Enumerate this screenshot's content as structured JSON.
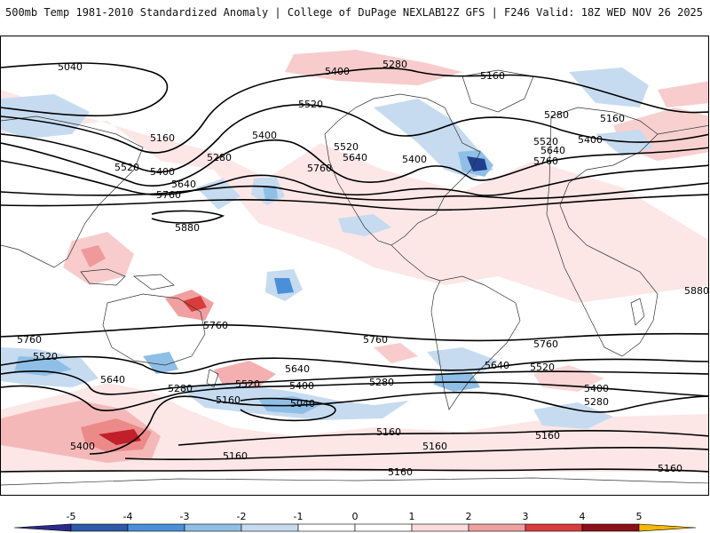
{
  "header": {
    "title_left": "500mb Temp 1981-2010 Standardized Anomaly | College of DuPage NEXLAB",
    "title_right": "12Z GFS | F246 Valid: 18Z WED NOV 26 2025"
  },
  "map": {
    "contour_labels": [
      "5040",
      "5400",
      "5280",
      "5160",
      "5520",
      "5160",
      "5280",
      "5160",
      "5280",
      "5520",
      "5400",
      "5640",
      "5400",
      "5520",
      "5640",
      "5760",
      "5400",
      "5520",
      "5400",
      "5760",
      "5640",
      "5760",
      "5880",
      "5880",
      "5760",
      "5760",
      "5760",
      "5760",
      "5520",
      "5640",
      "5640",
      "5520",
      "5640",
      "5520",
      "5400",
      "5280",
      "5400",
      "5280",
      "5160",
      "5040",
      "5280",
      "5160",
      "5160",
      "5400",
      "5160",
      "5160",
      "5160",
      "5160"
    ],
    "colors": {
      "cold_light": "#c6dbf0",
      "cold_mid": "#8fbfe6",
      "cold_strong": "#3a8fd6",
      "cold_deep": "#1f3f8f",
      "warm_light": "#fbdcdc",
      "warm_mid": "#f0a0a0",
      "warm_strong": "#d83c3c",
      "warm_deep": "#8c0f1a"
    }
  },
  "colorbar": {
    "ticks": [
      "-5",
      "-4",
      "-3",
      "-2",
      "-1",
      "0",
      "1",
      "2",
      "3",
      "4",
      "5"
    ],
    "colors": [
      "#2a2a8a",
      "#2c5aa8",
      "#4a90d9",
      "#8fbfe6",
      "#c6dbf0",
      "#ffffff",
      "#ffffff",
      "#fbdcdc",
      "#f0a0a0",
      "#d83c3c",
      "#8c0f1a",
      "#f5b800"
    ]
  }
}
